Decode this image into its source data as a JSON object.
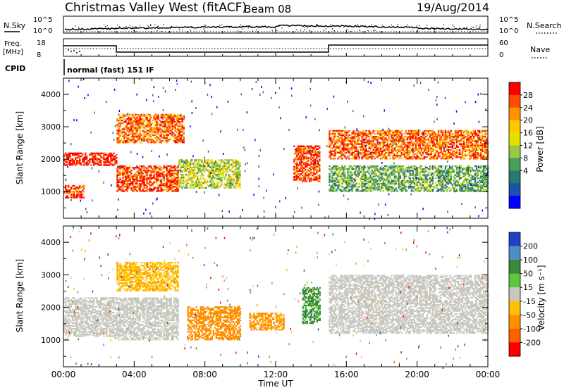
{
  "header": {
    "station": "Christmas Valley West (fitACF)",
    "beam": "Beam 08",
    "date": "19/Aug/2014"
  },
  "labels": {
    "nsky": "N.Sky",
    "nsearch": "N.Search",
    "freq_line1": "Freq.",
    "freq_line2": "[MHz]",
    "nave": "Nave",
    "cpid": "CPID",
    "cpid_value": "normal (fast) 151 IF",
    "x_axis_title": "Time UT",
    "slant_range": "Slant Range [km]",
    "power_title": "Power [dB]",
    "velocity_title": "Velocity [m s⁻¹]"
  },
  "noise_ticks": {
    "left": [
      "10^5",
      "10^0"
    ],
    "right": [
      "10^5",
      "10^0"
    ]
  },
  "freq_ticks": {
    "left": [
      "18",
      "8"
    ],
    "right": [
      "60",
      "0"
    ]
  },
  "chart_data": [
    {
      "type": "heatmap",
      "title": "Power [dB]",
      "xlabel": "Time UT",
      "ylabel": "Slant Range [km]",
      "x_ticks": [
        "00:00",
        "04:00",
        "08:00",
        "12:00",
        "16:00",
        "20:00",
        "00:00"
      ],
      "y_ticks": [
        "1000",
        "2000",
        "3000",
        "4000"
      ],
      "xlim_hours": [
        0,
        24
      ],
      "ylim_km": [
        180,
        4500
      ],
      "colorbar_ticks": [
        "28",
        "24",
        "20",
        "16",
        "12",
        "8",
        "4"
      ],
      "colorbar_colors": [
        "#ff0000",
        "#ff4e00",
        "#ff9200",
        "#ffc800",
        "#e3e100",
        "#97c942",
        "#4b9d5b",
        "#26796e",
        "#1c52ae",
        "#0000ff"
      ],
      "echo_bands": [
        {
          "hours": [
            0.0,
            3.0
          ],
          "range_km": [
            1800,
            2200
          ],
          "power_db": 26
        },
        {
          "hours": [
            0.0,
            1.2
          ],
          "range_km": [
            800,
            1200
          ],
          "power_db": 24
        },
        {
          "hours": [
            3.0,
            6.5
          ],
          "range_km": [
            1000,
            1800
          ],
          "power_db": 24
        },
        {
          "hours": [
            3.0,
            6.8
          ],
          "range_km": [
            2500,
            3400
          ],
          "power_db": 22
        },
        {
          "hours": [
            6.5,
            10.0
          ],
          "range_km": [
            1100,
            2000
          ],
          "power_db": 12
        },
        {
          "hours": [
            13.0,
            14.5
          ],
          "range_km": [
            1300,
            2400
          ],
          "power_db": 24
        },
        {
          "hours": [
            15.0,
            24.0
          ],
          "range_km": [
            2000,
            2900
          ],
          "power_db": 22
        },
        {
          "hours": [
            15.0,
            24.0
          ],
          "range_km": [
            1000,
            1800
          ],
          "power_db": 8
        }
      ]
    },
    {
      "type": "heatmap",
      "title": "Velocity [m s⁻¹]",
      "xlabel": "Time UT",
      "ylabel": "Slant Range [km]",
      "x_ticks": [
        "00:00",
        "04:00",
        "08:00",
        "12:00",
        "16:00",
        "20:00",
        "00:00"
      ],
      "y_ticks": [
        "1000",
        "2000",
        "3000",
        "4000"
      ],
      "xlim_hours": [
        0,
        24
      ],
      "ylim_km": [
        180,
        4500
      ],
      "colorbar_ticks": [
        "200",
        "100",
        "50",
        "15",
        "-15",
        "-50",
        "-100",
        "-200"
      ],
      "colorbar_colors": [
        "#2040c8",
        "#4e8ec8",
        "#3a8a3a",
        "#5ac83a",
        "#c8c8c0",
        "#ffc000",
        "#ff9000",
        "#ff6000",
        "#ff0000"
      ],
      "echo_bands": [
        {
          "hours": [
            0.0,
            3.0
          ],
          "range_km": [
            1100,
            2300
          ],
          "velocity_ms": 0
        },
        {
          "hours": [
            3.0,
            6.5
          ],
          "range_km": [
            2500,
            3400
          ],
          "velocity_ms": -40
        },
        {
          "hours": [
            3.0,
            6.5
          ],
          "range_km": [
            1000,
            2300
          ],
          "velocity_ms": 0
        },
        {
          "hours": [
            7.0,
            10.0
          ],
          "range_km": [
            1000,
            2000
          ],
          "velocity_ms": -70
        },
        {
          "hours": [
            10.5,
            12.5
          ],
          "range_km": [
            1300,
            1800
          ],
          "velocity_ms": -60
        },
        {
          "hours": [
            13.5,
            14.5
          ],
          "range_km": [
            1500,
            2600
          ],
          "velocity_ms": 60
        },
        {
          "hours": [
            15.0,
            24.0
          ],
          "range_km": [
            1200,
            3000
          ],
          "velocity_ms": 0
        }
      ]
    }
  ]
}
